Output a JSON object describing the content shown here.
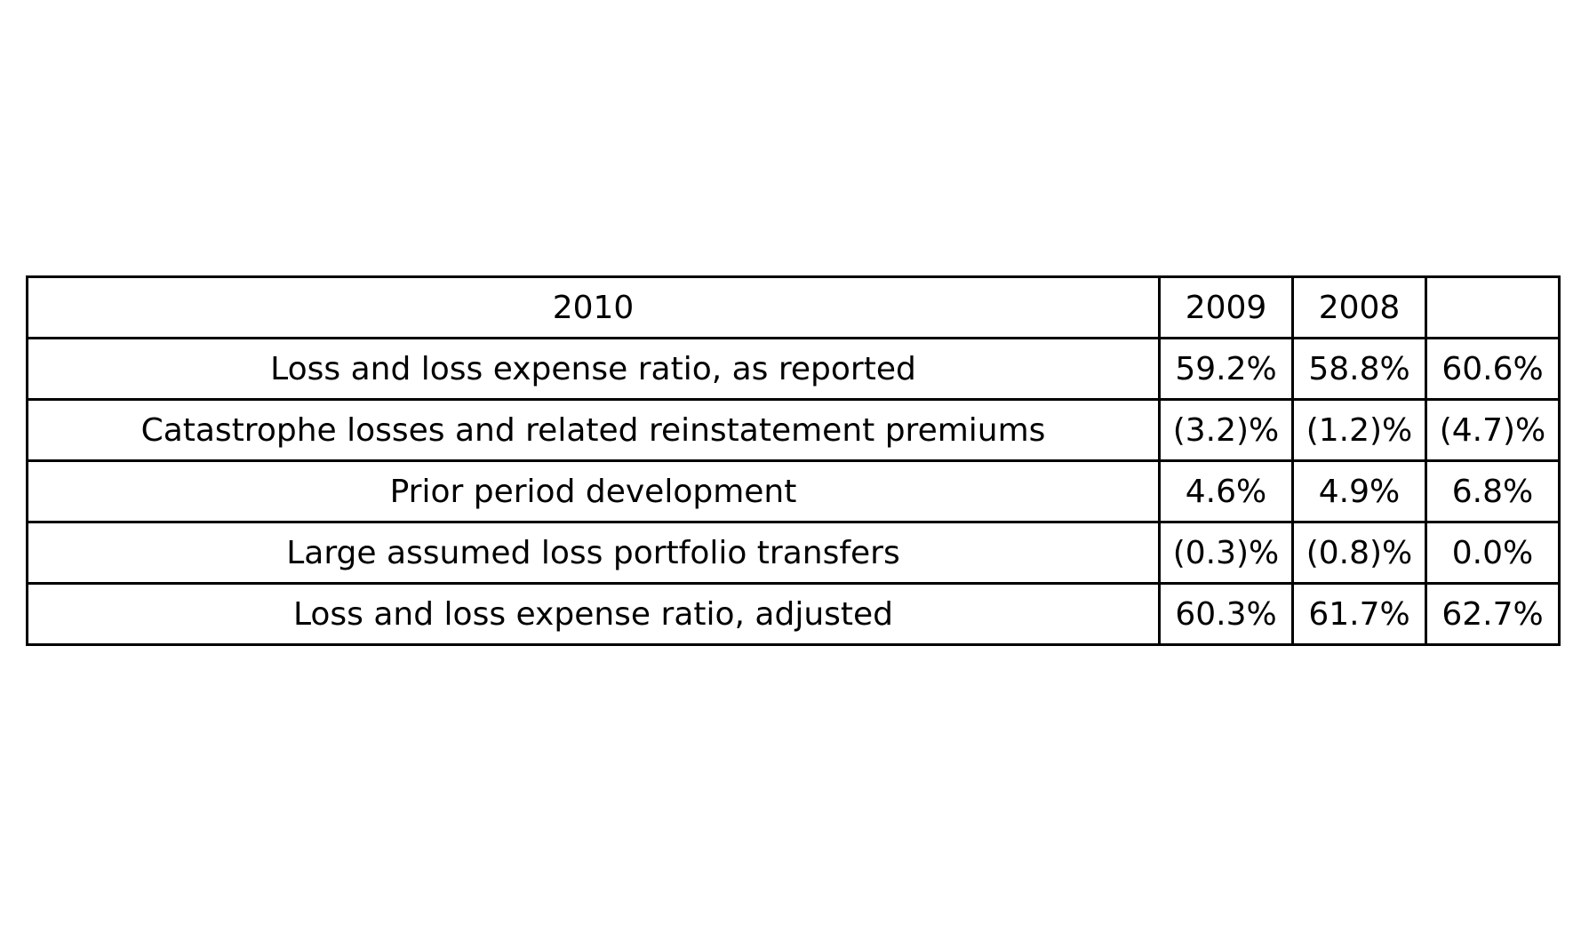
{
  "table": {
    "header": [
      "2010",
      "2009",
      "2008",
      ""
    ],
    "rows": [
      [
        "Loss and loss expense ratio, as reported",
        "59.2%",
        "58.8%",
        "60.6%"
      ],
      [
        "Catastrophe losses and related reinstatement premiums",
        "(3.2)%",
        "(1.2)%",
        "(4.7)%"
      ],
      [
        "Prior period development",
        "4.6%",
        "4.9%",
        "6.8%"
      ],
      [
        "Large assumed loss portfolio transfers",
        "(0.3)%",
        "(0.8)%",
        "0.0%"
      ],
      [
        "Loss and loss expense ratio, adjusted",
        "60.3%",
        "61.7%",
        "62.7%"
      ]
    ]
  }
}
